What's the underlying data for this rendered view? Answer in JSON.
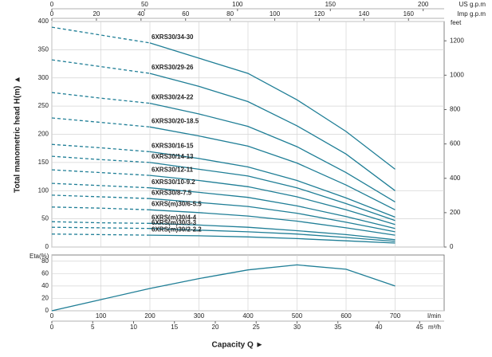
{
  "chart_data": [
    {
      "type": "line",
      "y_label": "Total manometric head H(m) ▲",
      "color": "#1f7e96",
      "grid": true,
      "x": [
        0,
        100,
        200,
        300,
        400,
        500,
        600,
        700
      ],
      "xlim": [
        0,
        800
      ],
      "xticks": [
        0,
        100,
        200,
        300,
        400,
        500,
        600,
        700
      ],
      "ylim": [
        0,
        400
      ],
      "yticks": [
        0,
        50,
        100,
        150,
        200,
        250,
        300,
        350,
        400
      ],
      "y2_label": "feet",
      "y2lim": [
        0,
        1312.3
      ],
      "y2ticks": [
        0,
        200,
        400,
        600,
        800,
        1000,
        1200
      ],
      "top_axes": [
        {
          "label": "US g.p.m",
          "lim": [
            0,
            211.3
          ],
          "ticks": [
            0,
            50,
            100,
            150,
            200
          ]
        },
        {
          "label": "Imp g.p.m",
          "lim": [
            0,
            176
          ],
          "ticks": [
            0,
            20,
            40,
            60,
            80,
            100,
            120,
            140,
            160
          ]
        }
      ],
      "series": [
        {
          "name": "6XRS30/34-30",
          "values": [
            390,
            376,
            362,
            335,
            308,
            261,
            205,
            138
          ]
        },
        {
          "name": "6XRS30/29-26",
          "values": [
            332,
            320,
            308,
            285,
            258,
            215,
            165,
            100
          ]
        },
        {
          "name": "6XRS30/24-22",
          "values": [
            274,
            264,
            255,
            236,
            214,
            178,
            132,
            80
          ]
        },
        {
          "name": "6XRS30/20-18.5",
          "values": [
            229,
            221,
            213,
            197,
            179,
            149,
            110,
            66
          ]
        },
        {
          "name": "6XRS30/16-15",
          "values": [
            182,
            176,
            169,
            157,
            142,
            118,
            87,
            53
          ]
        },
        {
          "name": "6XRS30/14-13",
          "values": [
            161,
            155,
            150,
            138,
            126,
            105,
            77,
            47
          ]
        },
        {
          "name": "6XRS30/12-11",
          "values": [
            137,
            132,
            127,
            118,
            107,
            89,
            66,
            40
          ]
        },
        {
          "name": "6XRS30/10-9.2",
          "values": [
            113,
            109,
            105,
            97,
            88,
            73,
            54,
            33
          ]
        },
        {
          "name": "6XRS30/8-7.5",
          "values": [
            92,
            89,
            86,
            79,
            72,
            60,
            44,
            27
          ]
        },
        {
          "name": "6XRS(m)30/6-5.5",
          "values": [
            71,
            69,
            66,
            61,
            55,
            46,
            34,
            21
          ]
        },
        {
          "name": "6XRS(m)30/4-4",
          "values": [
            45,
            43,
            42,
            39,
            35,
            29,
            22,
            13
          ]
        },
        {
          "name": "6XRS(m)30/3-3",
          "values": [
            35,
            34,
            33,
            30,
            27,
            23,
            17,
            10
          ]
        },
        {
          "name": "6XRS(m)30/2-2.2",
          "values": [
            23,
            22,
            21,
            20,
            18,
            15,
            11,
            7
          ]
        }
      ]
    },
    {
      "type": "line",
      "y_label": "Eta(%)",
      "color": "#1f7e96",
      "grid": true,
      "x": [
        0,
        100,
        200,
        300,
        400,
        500,
        600,
        700
      ],
      "values": [
        0,
        18,
        36,
        52,
        66,
        74,
        67,
        40
      ],
      "xlim": [
        0,
        800
      ],
      "xticks": [
        0,
        100,
        200,
        300,
        400,
        500,
        600,
        700
      ],
      "x_unit": "l/min",
      "x2lim": [
        0,
        48
      ],
      "x2ticks": [
        0,
        5,
        10,
        15,
        20,
        25,
        30,
        35,
        40,
        45
      ],
      "x2_unit": "m³/h",
      "ylim": [
        0,
        90
      ],
      "yticks": [
        0,
        20,
        40,
        60,
        80
      ],
      "x_label": "Capacity Q ►"
    }
  ]
}
